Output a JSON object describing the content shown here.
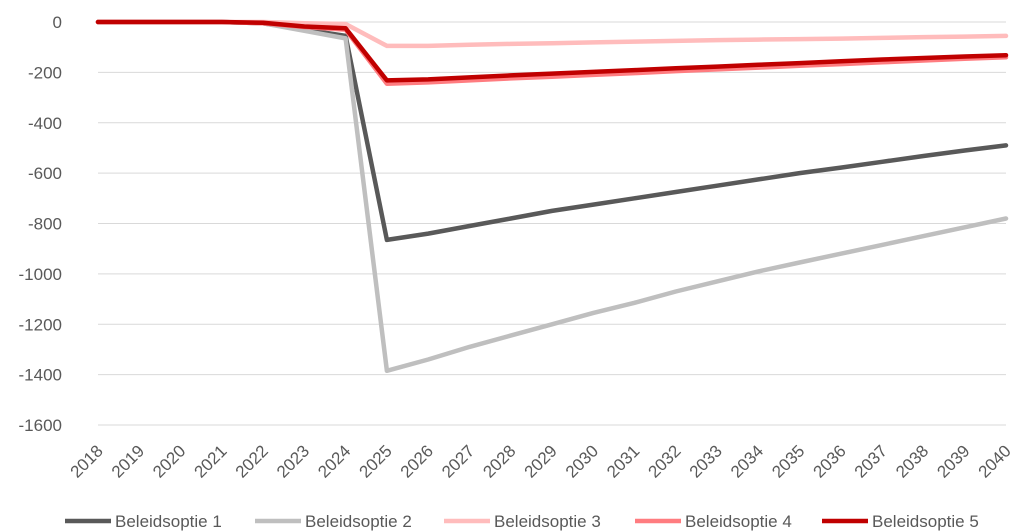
{
  "chart_data": {
    "type": "line",
    "title": "",
    "xlabel": "",
    "ylabel": "",
    "ylim": [
      -1600,
      0
    ],
    "yticks": [
      0,
      -200,
      -400,
      -600,
      -800,
      -1000,
      -1200,
      -1400,
      -1600
    ],
    "x": [
      "2018",
      "2019",
      "2020",
      "2021",
      "2022",
      "2023",
      "2024",
      "2025",
      "2026",
      "2027",
      "2028",
      "2029",
      "2030",
      "2031",
      "2032",
      "2033",
      "2034",
      "2035",
      "2036",
      "2037",
      "2038",
      "2039",
      "2040"
    ],
    "grid": "horizontal",
    "legend": "bottom",
    "series": [
      {
        "name": "Beleidsoptie 1",
        "color": "#595959",
        "values": [
          0,
          0,
          0,
          0,
          -5,
          -30,
          -55,
          -865,
          -840,
          -810,
          -780,
          -750,
          -725,
          -700,
          -675,
          -650,
          -625,
          -600,
          -578,
          -555,
          -532,
          -510,
          -490
        ]
      },
      {
        "name": "Beleidsoptie 2",
        "color": "#bfbfbf",
        "values": [
          0,
          0,
          0,
          0,
          -5,
          -35,
          -65,
          -1385,
          -1340,
          -1290,
          -1245,
          -1200,
          -1155,
          -1115,
          -1070,
          -1030,
          -990,
          -955,
          -920,
          -885,
          -850,
          -815,
          -780
        ]
      },
      {
        "name": "Beleidsoptie 3",
        "color": "#ffbcbc",
        "values": [
          0,
          0,
          0,
          0,
          0,
          -5,
          -8,
          -95,
          -95,
          -90,
          -87,
          -84,
          -81,
          -78,
          -75,
          -72,
          -70,
          -68,
          -66,
          -63,
          -60,
          -58,
          -55
        ]
      },
      {
        "name": "Beleidsoptie 4",
        "color": "#ff7c80",
        "values": [
          0,
          0,
          0,
          0,
          -5,
          -20,
          -30,
          -245,
          -240,
          -232,
          -224,
          -217,
          -210,
          -203,
          -195,
          -188,
          -181,
          -174,
          -167,
          -160,
          -153,
          -146,
          -140
        ]
      },
      {
        "name": "Beleidsoptie 5",
        "color": "#c00000",
        "values": [
          0,
          0,
          0,
          0,
          -3,
          -18,
          -25,
          -232,
          -228,
          -220,
          -212,
          -205,
          -198,
          -191,
          -184,
          -177,
          -170,
          -163,
          -156,
          -149,
          -143,
          -137,
          -132
        ]
      }
    ]
  }
}
